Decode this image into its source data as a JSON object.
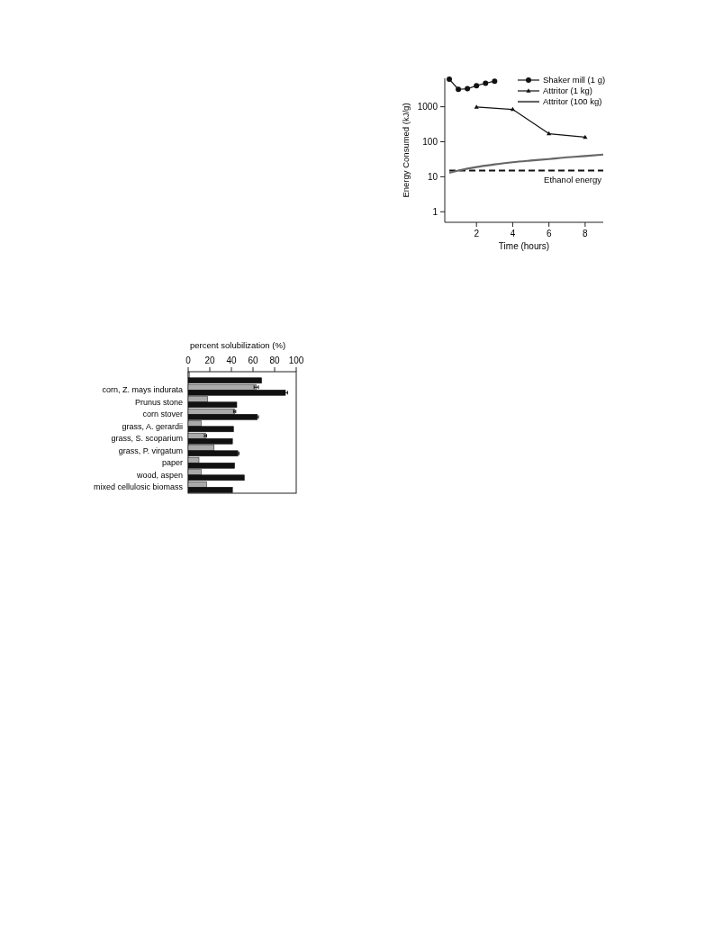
{
  "chart_data": [
    {
      "type": "line",
      "xlabel": "Time (hours)",
      "ylabel": "Energy Consumed (kJ/g)",
      "log": "y",
      "xlim": [
        0.25,
        9
      ],
      "xticks": [
        2,
        4,
        6,
        8
      ],
      "ylim": [
        0.5,
        6500
      ],
      "yticks": [
        1,
        10,
        100,
        1000
      ],
      "legend": "top right",
      "grid": false,
      "series": [
        {
          "name": "Shaker mill (1 g)",
          "color": "#111111",
          "marker": "circle",
          "x": [
            0.5,
            1,
            1.5,
            2,
            2.5,
            3
          ],
          "values": [
            6100,
            3150,
            3270,
            4000,
            4700,
            5400
          ]
        },
        {
          "name": "Attritor (1 kg)",
          "color": "#111111",
          "marker": "triangle",
          "x": [
            2,
            4,
            6,
            8
          ],
          "values": [
            980,
            840,
            170,
            135
          ]
        },
        {
          "name": "Attritor (100 kg)",
          "color": "#666666",
          "marker": "none",
          "x": [
            0.5,
            1,
            2,
            3,
            4,
            5,
            6,
            7,
            8,
            9
          ],
          "values": [
            13,
            15,
            19,
            22.5,
            26,
            29,
            32,
            36,
            39,
            43
          ]
        }
      ],
      "ref_lines": [
        {
          "axis": "y",
          "value": 15,
          "label": "Ethanol energy",
          "color": "#111111",
          "line_style": "dashed"
        }
      ]
    },
    {
      "type": "bar",
      "orientation": "horizontal",
      "xlabel": "percent solubilization (%)",
      "xlim": [
        0,
        100
      ],
      "xticks": [
        0,
        20,
        40,
        60,
        80,
        100
      ],
      "grid": false,
      "categories": [
        null,
        "corn, Z. mays indurata",
        "Prunus stone",
        "corn stover",
        "grass, A. gerardii",
        "grass, S. scoparium",
        "grass, P. virgatum",
        "paper",
        "wood, aspen",
        "mixed cellulosic biomass"
      ],
      "series": [
        {
          "color": "#aaaaaa",
          "values": [
            1,
            63,
            18,
            43,
            12,
            16,
            24,
            10,
            12,
            17
          ],
          "errors": [
            null,
            2,
            null,
            1,
            null,
            1,
            null,
            null,
            null,
            null
          ]
        },
        {
          "color": "#111111",
          "values": [
            68,
            90,
            45,
            64,
            42,
            41,
            46,
            43,
            52,
            41
          ],
          "errors": [
            null,
            2,
            null,
            1,
            null,
            null,
            1,
            null,
            null,
            null
          ]
        }
      ]
    }
  ]
}
